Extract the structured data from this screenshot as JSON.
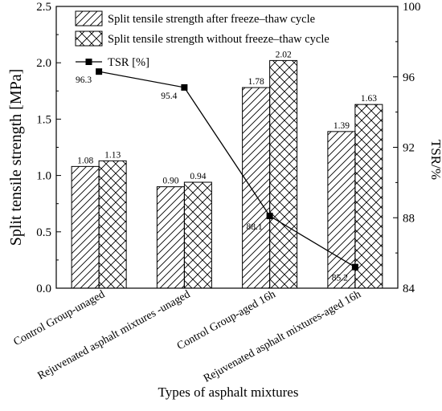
{
  "chart_data": {
    "type": "bar",
    "categories": [
      "Control Group-unaged",
      "Rejuvenated asphalt mixtures -unaged",
      "Control Group-aged 16h",
      "Rejuvenated asphalt mixtures-aged 16h"
    ],
    "series": [
      {
        "name": "Split tensile strength after freeze–thaw cycle",
        "values": [
          1.08,
          0.9,
          1.78,
          1.39
        ],
        "labels": [
          "1.08",
          "0.90",
          "1.78",
          "1.39"
        ],
        "pattern": "diagonal-hatch"
      },
      {
        "name": "Split tensile strength without freeze–thaw cycle",
        "values": [
          1.13,
          0.94,
          2.02,
          1.63
        ],
        "labels": [
          "1.13",
          "0.94",
          "2.02",
          "1.63"
        ],
        "pattern": "cross-hatch"
      }
    ],
    "line_series": {
      "name": "TSR [%]",
      "values": [
        96.3,
        95.4,
        88.1,
        85.2
      ],
      "labels": [
        "96.3",
        "95.4",
        "88.1",
        "85.2"
      ],
      "axis": "right",
      "marker": "square"
    },
    "xlabel": "Types of asphalt mixtures",
    "ylabel": "Split tensile strength [MPa]",
    "ylabel_right": "TSR/%",
    "ylim": [
      0,
      2.5
    ],
    "yticks": [
      "0.0",
      "0.5",
      "1.0",
      "1.5",
      "2.0",
      "2.5"
    ],
    "ylim_right": [
      84,
      100
    ],
    "yticks_right": [
      "84",
      "88",
      "92",
      "96",
      "100"
    ],
    "grid": false,
    "legend_position": "top-center"
  }
}
